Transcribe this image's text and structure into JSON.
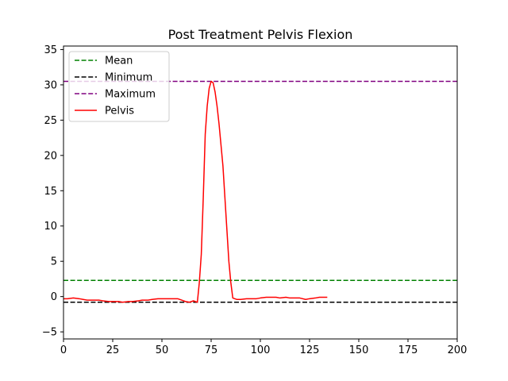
{
  "chart_data": {
    "type": "line",
    "title": "Post Treatment Pelvis Flexion",
    "xlabel": "",
    "ylabel": "",
    "xlim": [
      0,
      200
    ],
    "ylim": [
      -6,
      35.5
    ],
    "xticks": [
      0,
      25,
      50,
      75,
      100,
      125,
      150,
      175,
      200
    ],
    "yticks": [
      -5,
      0,
      5,
      10,
      15,
      20,
      25,
      30,
      35
    ],
    "grid": false,
    "legend": {
      "placement": "upper-left"
    },
    "reference_lines": [
      {
        "name": "Mean",
        "value": 2.3,
        "color": "#008000",
        "style": "dashed"
      },
      {
        "name": "Minimum",
        "value": -0.8,
        "color": "#000000",
        "style": "dashed"
      },
      {
        "name": "Maximum",
        "value": 30.5,
        "color": "#800080",
        "style": "dashed"
      }
    ],
    "series": [
      {
        "name": "Pelvis",
        "color": "#ff0000",
        "style": "solid",
        "x": [
          0,
          2,
          5,
          8,
          10,
          12,
          15,
          18,
          20,
          23,
          25,
          28,
          30,
          33,
          35,
          38,
          40,
          43,
          45,
          48,
          50,
          53,
          55,
          58,
          60,
          62,
          64,
          66,
          68,
          69,
          70,
          71,
          72,
          73,
          74,
          75,
          76,
          77,
          78,
          79,
          80,
          81,
          82,
          83,
          84,
          85,
          86,
          87,
          88,
          90,
          93,
          95,
          98,
          100,
          103,
          105,
          108,
          110,
          113,
          115,
          118,
          120,
          123,
          125,
          128,
          130,
          133,
          134
        ],
        "y": [
          -0.3,
          -0.3,
          -0.2,
          -0.3,
          -0.4,
          -0.5,
          -0.5,
          -0.5,
          -0.6,
          -0.7,
          -0.7,
          -0.7,
          -0.8,
          -0.7,
          -0.7,
          -0.6,
          -0.5,
          -0.5,
          -0.4,
          -0.3,
          -0.3,
          -0.3,
          -0.3,
          -0.3,
          -0.5,
          -0.7,
          -0.8,
          -0.6,
          -0.8,
          2.0,
          6.0,
          14.0,
          23.0,
          27.0,
          29.5,
          30.5,
          30.3,
          29.0,
          27.0,
          24.5,
          21.5,
          18.5,
          14.0,
          9.5,
          5.0,
          2.0,
          -0.2,
          -0.3,
          -0.4,
          -0.4,
          -0.3,
          -0.3,
          -0.3,
          -0.2,
          -0.1,
          -0.1,
          -0.1,
          -0.2,
          -0.1,
          -0.2,
          -0.2,
          -0.2,
          -0.4,
          -0.3,
          -0.2,
          -0.1,
          -0.1,
          -0.1
        ]
      }
    ]
  }
}
